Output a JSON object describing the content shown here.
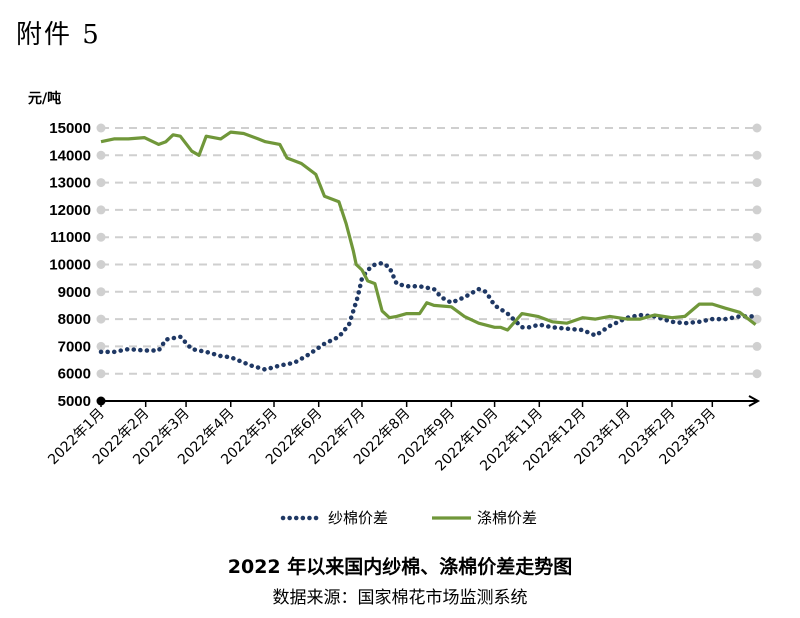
{
  "page_label": "附件 5",
  "caption": {
    "title": "2022 年以来国内纱棉、涤棉价差走势图",
    "source": "数据来源：国家棉花市场监测系统"
  },
  "chart_data": {
    "type": "line",
    "title": "2022 年以来国内纱棉、涤棉价差走势图",
    "ylabel": "元/吨",
    "xlabel": "",
    "ylim": [
      5000,
      15000
    ],
    "yticks": [
      5000,
      6000,
      7000,
      8000,
      9000,
      10000,
      11000,
      12000,
      13000,
      14000,
      15000
    ],
    "xticks": [
      "2022年1月",
      "2022年2月",
      "2022年3月",
      "2022年4月",
      "2022年5月",
      "2022年6月",
      "2022年7月",
      "2022年8月",
      "2022年9月",
      "2022年10月",
      "2022年11月",
      "2022年12月",
      "2023年1月",
      "2023年2月",
      "2023年3月"
    ],
    "grid": true,
    "legend_position": "bottom",
    "series": [
      {
        "name": "纱棉价差",
        "style": "dotted",
        "color": "#1f3864",
        "x": [
          "2022-01-01",
          "2022-01-10",
          "2022-01-20",
          "2022-01-31",
          "2022-02-10",
          "2022-02-15",
          "2022-02-25",
          "2022-03-05",
          "2022-03-15",
          "2022-03-25",
          "2022-04-01",
          "2022-04-15",
          "2022-04-25",
          "2022-05-05",
          "2022-05-15",
          "2022-05-25",
          "2022-06-05",
          "2022-06-15",
          "2022-06-22",
          "2022-06-28",
          "2022-07-01",
          "2022-07-05",
          "2022-07-10",
          "2022-07-15",
          "2022-07-20",
          "2022-07-25",
          "2022-08-01",
          "2022-08-10",
          "2022-08-20",
          "2022-08-25",
          "2022-09-01",
          "2022-09-10",
          "2022-09-20",
          "2022-09-25",
          "2022-10-01",
          "2022-10-10",
          "2022-10-20",
          "2022-10-25",
          "2022-11-01",
          "2022-11-10",
          "2022-11-20",
          "2022-12-01",
          "2022-12-10",
          "2022-12-20",
          "2023-01-01",
          "2023-01-10",
          "2023-01-20",
          "2023-02-01",
          "2023-02-10",
          "2023-02-20",
          "2023-03-01",
          "2023-03-10",
          "2023-03-20",
          "2023-03-31"
        ],
        "values": [
          6800,
          6800,
          6900,
          6850,
          6850,
          7250,
          7350,
          6900,
          6800,
          6650,
          6600,
          6300,
          6150,
          6300,
          6400,
          6700,
          7100,
          7350,
          7800,
          8800,
          9500,
          9800,
          10000,
          10050,
          9900,
          9300,
          9200,
          9200,
          9100,
          8800,
          8600,
          8800,
          9100,
          9000,
          8500,
          8200,
          7700,
          7700,
          7800,
          7700,
          7650,
          7600,
          7400,
          7750,
          8050,
          8150,
          8100,
          7900,
          7850,
          7900,
          8000,
          8000,
          8100,
          8100
        ]
      },
      {
        "name": "涤棉价差",
        "style": "solid",
        "color": "#70973a",
        "x": [
          "2022-01-01",
          "2022-01-10",
          "2022-01-20",
          "2022-01-31",
          "2022-02-10",
          "2022-02-15",
          "2022-02-20",
          "2022-02-25",
          "2022-03-05",
          "2022-03-10",
          "2022-03-15",
          "2022-03-25",
          "2022-04-01",
          "2022-04-10",
          "2022-04-20",
          "2022-04-25",
          "2022-05-05",
          "2022-05-10",
          "2022-05-20",
          "2022-05-30",
          "2022-06-05",
          "2022-06-15",
          "2022-06-20",
          "2022-06-25",
          "2022-06-27",
          "2022-07-01",
          "2022-07-05",
          "2022-07-10",
          "2022-07-15",
          "2022-07-20",
          "2022-07-25",
          "2022-08-01",
          "2022-08-10",
          "2022-08-15",
          "2022-08-20",
          "2022-09-01",
          "2022-09-10",
          "2022-09-20",
          "2022-10-01",
          "2022-10-05",
          "2022-10-10",
          "2022-10-20",
          "2022-10-31",
          "2022-11-10",
          "2022-11-20",
          "2022-12-01",
          "2022-12-10",
          "2022-12-20",
          "2023-01-01",
          "2023-01-10",
          "2023-01-20",
          "2023-02-01",
          "2023-02-10",
          "2023-02-20",
          "2023-03-01",
          "2023-03-10",
          "2023-03-20",
          "2023-03-31"
        ],
        "values": [
          14500,
          14600,
          14600,
          14650,
          14400,
          14500,
          14750,
          14700,
          14150,
          14000,
          14700,
          14600,
          14850,
          14800,
          14600,
          14500,
          14400,
          13900,
          13700,
          13300,
          12500,
          12300,
          11500,
          10500,
          10000,
          9800,
          9400,
          9300,
          8300,
          8050,
          8100,
          8200,
          8200,
          8600,
          8500,
          8450,
          8100,
          7850,
          7700,
          7700,
          7600,
          8200,
          8100,
          7900,
          7850,
          8050,
          8000,
          8100,
          8000,
          8000,
          8150,
          8050,
          8100,
          8550,
          8550,
          8400,
          8250,
          7800
        ]
      }
    ]
  }
}
